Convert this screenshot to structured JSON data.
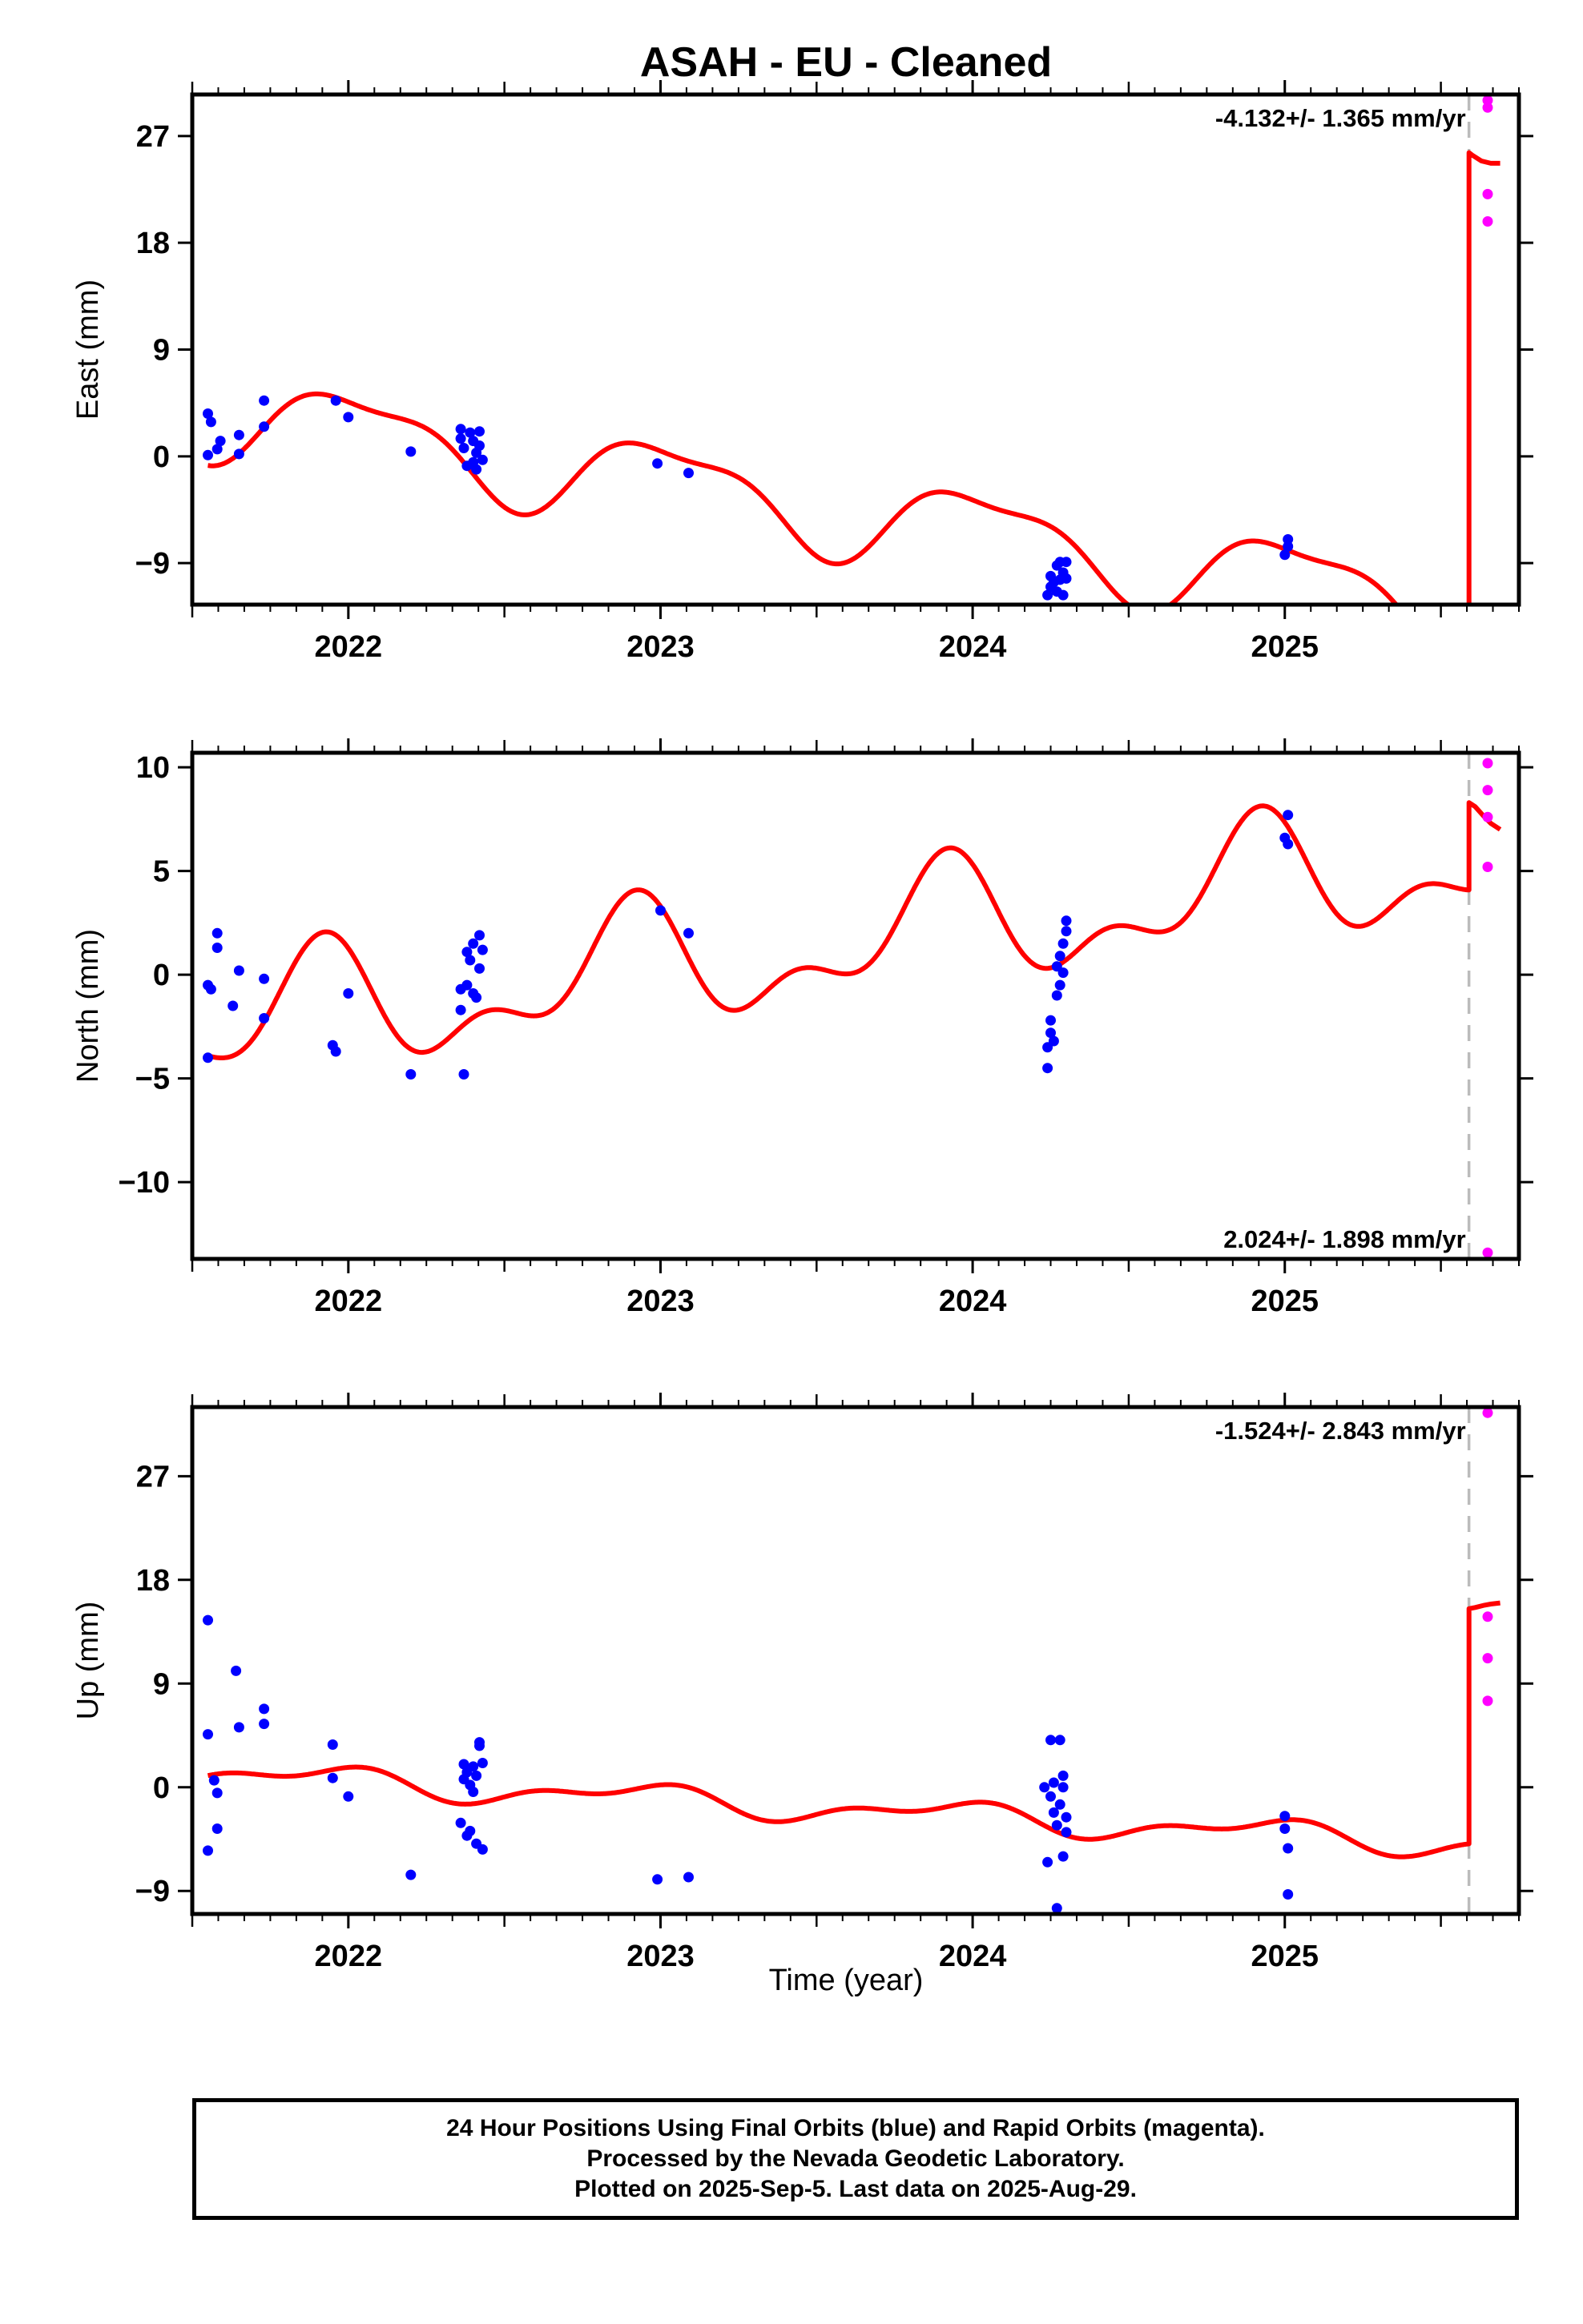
{
  "figure_title": "ASAH  - EU - Cleaned",
  "x_axis_label": "Time (year)",
  "caption_lines": [
    "24 Hour Positions Using Final Orbits (blue) and Rapid Orbits (magenta).",
    "Processed by the Nevada Geodetic Laboratory.",
    "Plotted on 2025-Sep-5. Last data on 2025-Aug-29."
  ],
  "colors": {
    "final_orbits": "#0000ff",
    "rapid_orbits": "#ff00ff",
    "model": "#ff0000",
    "discontinuity": "#bbbbbb"
  },
  "chart_data": [
    {
      "type": "scatter",
      "title": "",
      "xlabel": "",
      "ylabel": "East (mm)",
      "xlim": [
        2021.5,
        2025.75
      ],
      "ylim": [
        -12.5,
        30.5
      ],
      "xticks": [
        2022,
        2023,
        2024,
        2025
      ],
      "yticks": [
        -9,
        0,
        9,
        18,
        27
      ],
      "rate_label": "-4.132+/- 1.365 mm/yr",
      "rate_label_position": "top-right",
      "discontinuity_year": 2025.59,
      "grid": false,
      "series": [
        {
          "name": "Final Orbits",
          "color": "#0000ff",
          "points": [
            [
              2021.55,
              3.6
            ],
            [
              2021.56,
              2.9
            ],
            [
              2021.55,
              0.1
            ],
            [
              2021.58,
              0.6
            ],
            [
              2021.59,
              1.3
            ],
            [
              2021.65,
              1.8
            ],
            [
              2021.65,
              0.2
            ],
            [
              2021.73,
              4.7
            ],
            [
              2021.73,
              2.5
            ],
            [
              2021.96,
              4.7
            ],
            [
              2022.0,
              3.3
            ],
            [
              2022.2,
              0.4
            ],
            [
              2022.36,
              2.3
            ],
            [
              2022.36,
              1.5
            ],
            [
              2022.37,
              0.7
            ],
            [
              2022.38,
              -0.8
            ],
            [
              2022.39,
              2.0
            ],
            [
              2022.4,
              1.3
            ],
            [
              2022.4,
              -0.5
            ],
            [
              2022.41,
              -1.1
            ],
            [
              2022.41,
              0.3
            ],
            [
              2022.42,
              2.1
            ],
            [
              2022.42,
              0.9
            ],
            [
              2022.43,
              -0.3
            ],
            [
              2022.99,
              -0.6
            ],
            [
              2023.09,
              -1.4
            ],
            [
              2024.24,
              -11.7
            ],
            [
              2024.25,
              -11.0
            ],
            [
              2024.25,
              -10.1
            ],
            [
              2024.26,
              -10.6
            ],
            [
              2024.27,
              -9.2
            ],
            [
              2024.27,
              -11.4
            ],
            [
              2024.28,
              -10.4
            ],
            [
              2024.28,
              -8.9
            ],
            [
              2024.29,
              -11.7
            ],
            [
              2024.29,
              -9.8
            ],
            [
              2024.3,
              -10.3
            ],
            [
              2024.3,
              -8.9
            ],
            [
              2025.0,
              -8.3
            ],
            [
              2025.01,
              -7.6
            ],
            [
              2025.01,
              -7.0
            ]
          ]
        },
        {
          "name": "Rapid Orbits",
          "color": "#ff00ff",
          "points": [
            [
              2025.65,
              30.0
            ],
            [
              2025.65,
              29.4
            ],
            [
              2025.65,
              22.1
            ],
            [
              2025.65,
              19.8
            ]
          ]
        }
      ],
      "model": {
        "segment1": {
          "t0": 2023.0,
          "offset": -2.2,
          "rate": -4.132,
          "annual": [
            0.7,
            3.4
          ],
          "semiannual": [
            -0.85,
            -0.75
          ],
          "x_range": [
            2021.55,
            2025.59
          ]
        },
        "segment2": {
          "x": [
            2025.59,
            2025.6,
            2025.63,
            2025.66,
            2025.69
          ],
          "y": [
            25.6,
            25.4,
            24.9,
            24.7,
            24.7
          ]
        }
      }
    },
    {
      "type": "scatter",
      "title": "",
      "xlabel": "",
      "ylabel": "North (mm)",
      "xlim": [
        2021.5,
        2025.75
      ],
      "ylim": [
        -13.7,
        10.7
      ],
      "xticks": [
        2022,
        2023,
        2024,
        2025
      ],
      "yticks": [
        -10,
        -5,
        0,
        5,
        10
      ],
      "rate_label": "2.024+/- 1.898 mm/yr",
      "rate_label_position": "bottom-right",
      "discontinuity_year": 2025.59,
      "grid": false,
      "series": [
        {
          "name": "Final Orbits",
          "color": "#0000ff",
          "points": [
            [
              2021.55,
              -4.0
            ],
            [
              2021.55,
              -0.5
            ],
            [
              2021.56,
              -0.7
            ],
            [
              2021.58,
              2.0
            ],
            [
              2021.58,
              1.3
            ],
            [
              2021.63,
              -1.5
            ],
            [
              2021.65,
              0.2
            ],
            [
              2021.73,
              -0.2
            ],
            [
              2021.73,
              -2.1
            ],
            [
              2021.95,
              -3.4
            ],
            [
              2021.96,
              -3.7
            ],
            [
              2022.0,
              -0.9
            ],
            [
              2022.2,
              -4.8
            ],
            [
              2022.36,
              -1.7
            ],
            [
              2022.36,
              -0.7
            ],
            [
              2022.37,
              -4.8
            ],
            [
              2022.38,
              -0.5
            ],
            [
              2022.38,
              1.1
            ],
            [
              2022.39,
              0.7
            ],
            [
              2022.4,
              1.5
            ],
            [
              2022.4,
              -0.9
            ],
            [
              2022.41,
              -1.1
            ],
            [
              2022.42,
              0.3
            ],
            [
              2022.42,
              1.9
            ],
            [
              2022.43,
              1.2
            ],
            [
              2023.0,
              3.1
            ],
            [
              2023.09,
              2.0
            ],
            [
              2024.24,
              -4.5
            ],
            [
              2024.24,
              -3.5
            ],
            [
              2024.25,
              -2.8
            ],
            [
              2024.25,
              -2.2
            ],
            [
              2024.26,
              -3.2
            ],
            [
              2024.27,
              -1.0
            ],
            [
              2024.27,
              0.4
            ],
            [
              2024.28,
              -0.5
            ],
            [
              2024.28,
              0.9
            ],
            [
              2024.29,
              1.5
            ],
            [
              2024.29,
              0.1
            ],
            [
              2024.3,
              2.1
            ],
            [
              2024.3,
              2.6
            ],
            [
              2025.0,
              6.6
            ],
            [
              2025.01,
              6.3
            ],
            [
              2025.01,
              7.7
            ]
          ]
        },
        {
          "name": "Rapid Orbits",
          "color": "#ff00ff",
          "points": [
            [
              2025.65,
              10.2
            ],
            [
              2025.65,
              8.9
            ],
            [
              2025.65,
              7.6
            ],
            [
              2025.65,
              5.2
            ],
            [
              2025.65,
              -13.4
            ]
          ]
        }
      ],
      "model": {
        "segment1": {
          "t0": 2023.0,
          "offset": 0.3,
          "rate": 2.024,
          "annual": [
            -1.5,
            2.0
          ],
          "semiannual": [
            -1.1,
            1.0
          ],
          "x_range": [
            2021.55,
            2025.59
          ]
        },
        "segment2": {
          "x": [
            2025.59,
            2025.61,
            2025.64,
            2025.66,
            2025.69
          ],
          "y": [
            8.3,
            8.1,
            7.6,
            7.3,
            7.0
          ]
        }
      }
    },
    {
      "type": "scatter",
      "title": "",
      "xlabel": "Time (year)",
      "ylabel": "Up (mm)",
      "xlim": [
        2021.5,
        2025.75
      ],
      "ylim": [
        -11,
        33
      ],
      "xticks": [
        2022,
        2023,
        2024,
        2025
      ],
      "yticks": [
        -9,
        0,
        9,
        18,
        27
      ],
      "rate_label": "-1.524+/- 2.843 mm/yr",
      "rate_label_position": "top-right",
      "discontinuity_year": 2025.59,
      "grid": false,
      "series": [
        {
          "name": "Final Orbits",
          "color": "#0000ff",
          "points": [
            [
              2021.55,
              14.5
            ],
            [
              2021.55,
              4.6
            ],
            [
              2021.55,
              -5.5
            ],
            [
              2021.57,
              0.6
            ],
            [
              2021.58,
              -3.6
            ],
            [
              2021.58,
              -0.5
            ],
            [
              2021.64,
              10.1
            ],
            [
              2021.65,
              5.2
            ],
            [
              2021.73,
              6.8
            ],
            [
              2021.73,
              5.5
            ],
            [
              2021.95,
              3.7
            ],
            [
              2021.95,
              0.8
            ],
            [
              2022.0,
              -0.8
            ],
            [
              2022.2,
              -7.6
            ],
            [
              2022.36,
              -3.1
            ],
            [
              2022.37,
              2.0
            ],
            [
              2022.37,
              0.7
            ],
            [
              2022.38,
              -4.2
            ],
            [
              2022.38,
              1.3
            ],
            [
              2022.39,
              0.2
            ],
            [
              2022.39,
              -3.8
            ],
            [
              2022.4,
              1.8
            ],
            [
              2022.4,
              -0.4
            ],
            [
              2022.41,
              1.0
            ],
            [
              2022.41,
              -4.9
            ],
            [
              2022.42,
              3.6
            ],
            [
              2022.42,
              3.9
            ],
            [
              2022.43,
              2.1
            ],
            [
              2022.43,
              -5.4
            ],
            [
              2022.99,
              -8.0
            ],
            [
              2023.09,
              -7.8
            ],
            [
              2024.23,
              0.0
            ],
            [
              2024.24,
              -6.5
            ],
            [
              2024.25,
              -0.8
            ],
            [
              2024.25,
              4.1
            ],
            [
              2024.26,
              -2.2
            ],
            [
              2024.26,
              0.4
            ],
            [
              2024.27,
              -3.3
            ],
            [
              2024.27,
              -10.5
            ],
            [
              2024.28,
              4.1
            ],
            [
              2024.28,
              -1.5
            ],
            [
              2024.29,
              1.0
            ],
            [
              2024.29,
              -6.0
            ],
            [
              2024.3,
              -3.9
            ],
            [
              2024.3,
              -2.6
            ],
            [
              2024.29,
              0.0
            ],
            [
              2025.0,
              -2.5
            ],
            [
              2025.0,
              -3.6
            ],
            [
              2025.01,
              -5.3
            ],
            [
              2025.01,
              -9.3
            ]
          ]
        },
        {
          "name": "Rapid Orbits",
          "color": "#ff00ff",
          "points": [
            [
              2025.65,
              32.5
            ],
            [
              2025.65,
              14.8
            ],
            [
              2025.65,
              11.2
            ],
            [
              2025.65,
              7.5
            ]
          ]
        }
      ],
      "model": {
        "segment1": {
          "t0": 2023.0,
          "offset": -1.0,
          "rate": -1.524,
          "annual": [
            -0.4,
            0.9
          ],
          "semiannual": [
            0.5,
            0.3
          ],
          "x_range": [
            2021.55,
            2025.59
          ]
        },
        "segment2": {
          "x": [
            2025.59,
            2025.61,
            2025.64,
            2025.66,
            2025.69
          ],
          "y": [
            15.5,
            15.6,
            15.8,
            15.9,
            16.0
          ]
        }
      }
    }
  ]
}
